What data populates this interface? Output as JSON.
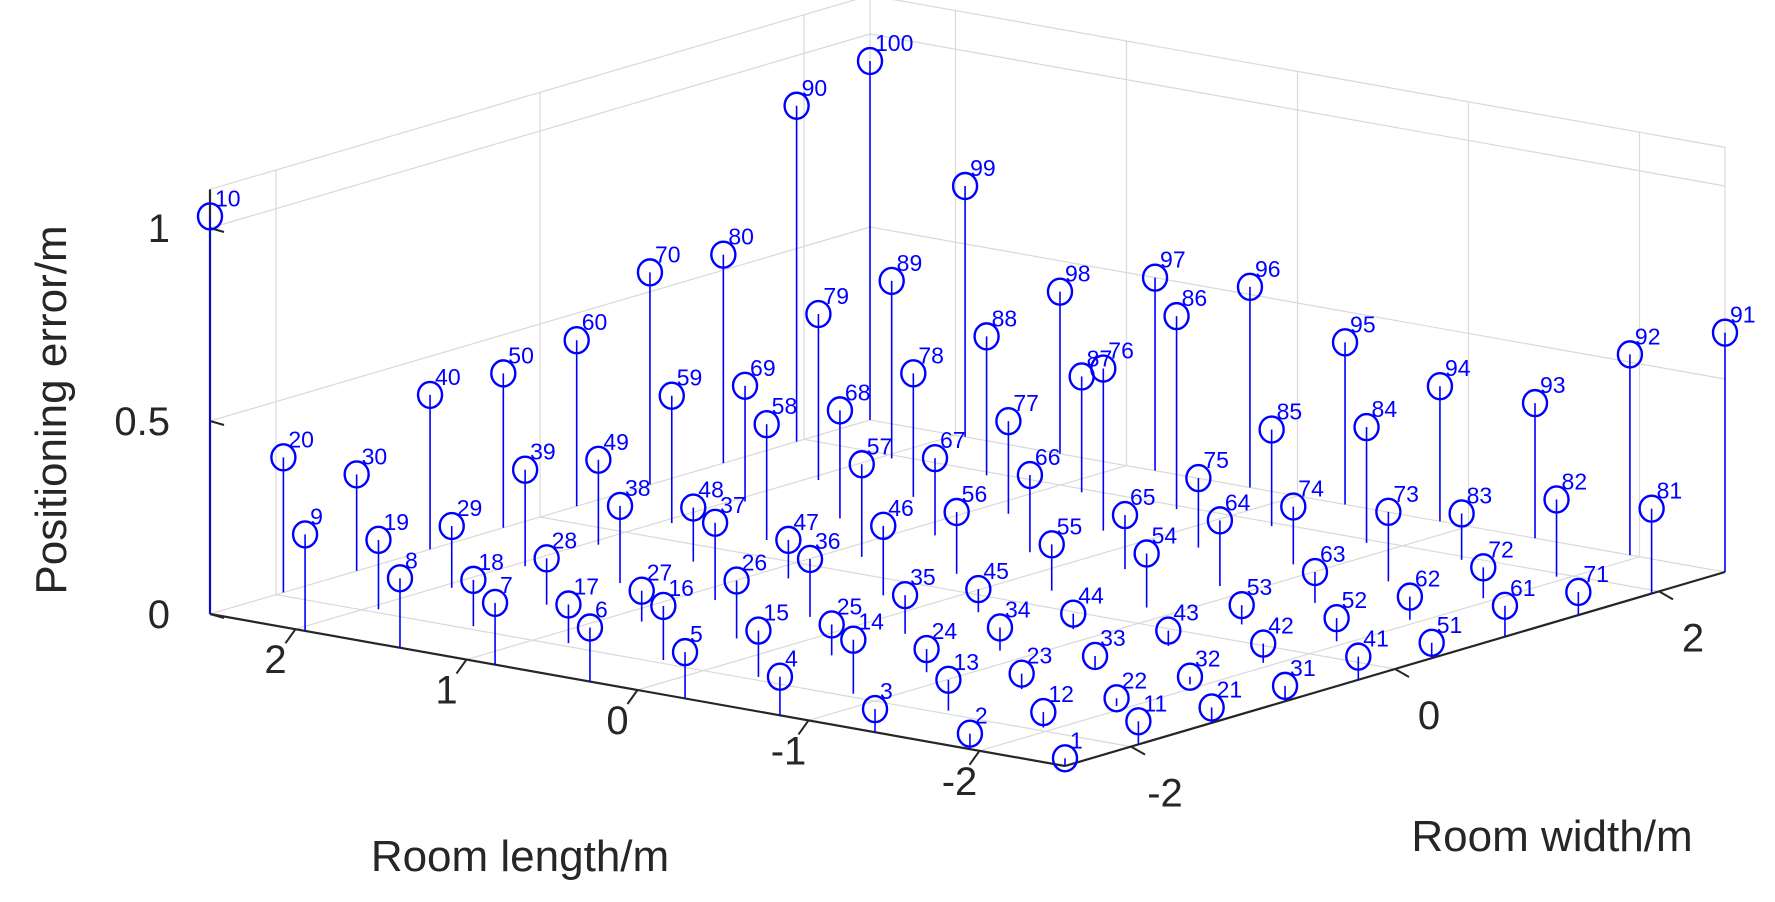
{
  "chart_data": {
    "type": "scatter",
    "subtype": "3d-stem",
    "title": "",
    "xlabel": "Room length/m",
    "ylabel": "Room width/m",
    "zlabel": "Positioning error/m",
    "xlim": [
      -2.5,
      2.5
    ],
    "ylim": [
      -2.5,
      2.5
    ],
    "zlim": [
      0,
      1.1
    ],
    "x_ticks": [
      "2",
      "1",
      "0",
      "-1",
      "-2"
    ],
    "x_tick_values": [
      2,
      1,
      0,
      -1,
      -2
    ],
    "y_ticks": [
      "-2",
      "0",
      "2"
    ],
    "y_tick_values": [
      -2,
      0,
      2
    ],
    "z_ticks": [
      "0",
      "0.5",
      "1"
    ],
    "z_tick_values": [
      0,
      0.5,
      1
    ],
    "grid": true,
    "marker": "circle",
    "color": "#0000ff",
    "grid_x": [
      -2.5,
      -1.944,
      -1.389,
      -0.833,
      -0.278,
      0.278,
      0.833,
      1.389,
      1.944,
      2.5
    ],
    "grid_y": [
      -2.5,
      -1.944,
      -1.389,
      -0.833,
      -0.278,
      0.278,
      0.833,
      1.389,
      1.944,
      2.5
    ],
    "points_layout": "point n lies at x = grid_x[(n-1) mod 10], y = grid_y[floor((n-1)/10)]",
    "labels": [
      "1",
      "2",
      "3",
      "4",
      "5",
      "6",
      "7",
      "8",
      "9",
      "10",
      "11",
      "12",
      "13",
      "14",
      "15",
      "16",
      "17",
      "18",
      "19",
      "20",
      "21",
      "22",
      "23",
      "24",
      "25",
      "26",
      "27",
      "28",
      "29",
      "30",
      "31",
      "32",
      "33",
      "34",
      "35",
      "36",
      "37",
      "38",
      "39",
      "40",
      "41",
      "42",
      "43",
      "44",
      "45",
      "46",
      "47",
      "48",
      "49",
      "50",
      "51",
      "52",
      "53",
      "54",
      "55",
      "56",
      "57",
      "58",
      "59",
      "60",
      "61",
      "62",
      "63",
      "64",
      "65",
      "66",
      "67",
      "68",
      "69",
      "70",
      "71",
      "72",
      "73",
      "74",
      "75",
      "76",
      "77",
      "78",
      "79",
      "80",
      "81",
      "82",
      "83",
      "84",
      "85",
      "86",
      "87",
      "88",
      "89",
      "90",
      "91",
      "92",
      "93",
      "94",
      "95",
      "96",
      "97",
      "98",
      "99",
      "100"
    ],
    "z": [
      0.02,
      0.04,
      0.06,
      0.1,
      0.12,
      0.14,
      0.16,
      0.18,
      0.25,
      1.03,
      0.06,
      0.04,
      0.08,
      0.14,
      0.12,
      0.14,
      0.1,
      0.12,
      0.18,
      0.35,
      0.04,
      0.02,
      0.04,
      0.06,
      0.08,
      0.15,
      0.08,
      0.12,
      0.16,
      0.25,
      0.04,
      0.02,
      0.03,
      0.06,
      0.1,
      0.15,
      0.2,
      0.2,
      0.25,
      0.4,
      0.06,
      0.05,
      0.04,
      0.04,
      0.06,
      0.18,
      0.1,
      0.14,
      0.22,
      0.4,
      0.04,
      0.06,
      0.05,
      0.14,
      0.12,
      0.16,
      0.24,
      0.3,
      0.33,
      0.43,
      0.08,
      0.06,
      0.08,
      0.17,
      0.14,
      0.2,
      0.2,
      0.28,
      0.3,
      0.55,
      0.06,
      0.08,
      0.18,
      0.15,
      0.18,
      0.42,
      0.24,
      0.32,
      0.43,
      0.54,
      0.22,
      0.2,
      0.12,
      0.3,
      0.25,
      0.5,
      0.3,
      0.36,
      0.46,
      0.87,
      0.62,
      0.52,
      0.35,
      0.35,
      0.42,
      0.52,
      0.5,
      0.42,
      0.65,
      0.93
    ]
  }
}
